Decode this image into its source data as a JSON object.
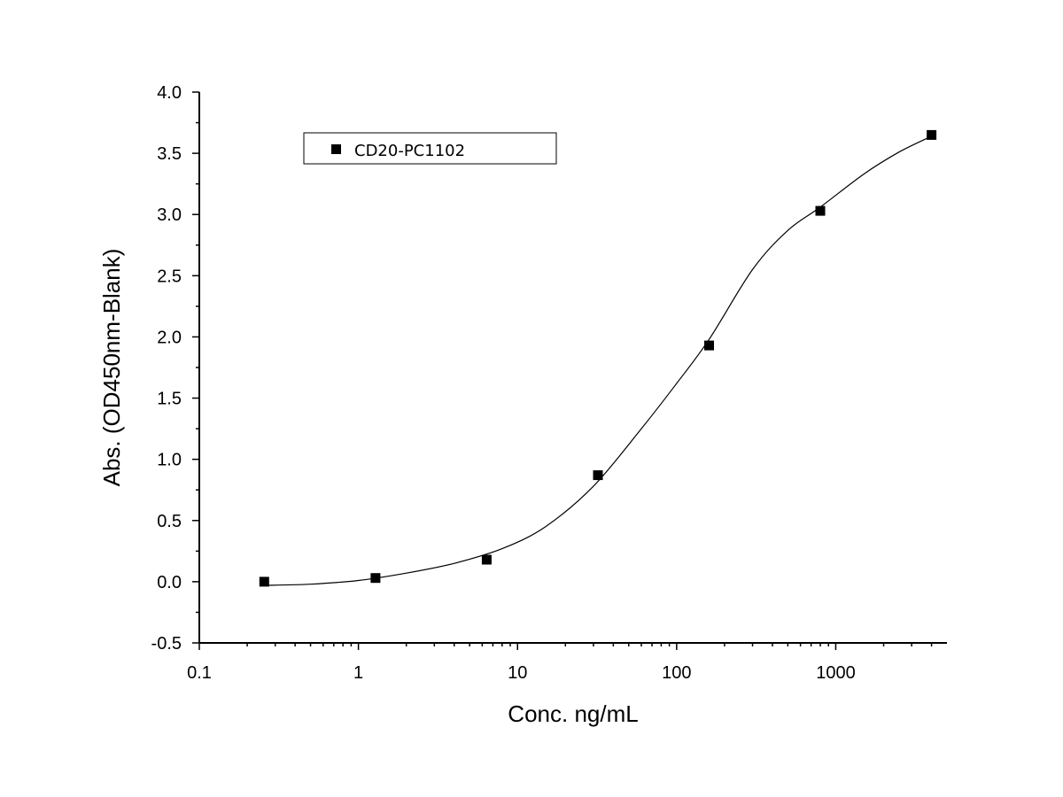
{
  "chart_data": {
    "type": "scatter",
    "title": "",
    "xlabel": "Conc. ng/mL",
    "ylabel": "Abs. (OD450nm-Blank)",
    "x_scale": "log",
    "xlim": [
      0.1,
      5000
    ],
    "ylim": [
      -0.5,
      4.0
    ],
    "x_ticks": [
      0.1,
      1,
      10,
      100,
      1000
    ],
    "x_tick_labels": [
      "0.1",
      "1",
      "10",
      "100",
      "1000"
    ],
    "y_ticks": [
      -0.5,
      0.0,
      0.5,
      1.0,
      1.5,
      2.0,
      2.5,
      3.0,
      3.5,
      4.0
    ],
    "y_tick_labels": [
      "-0.5",
      "0.0",
      "0.5",
      "1.0",
      "1.5",
      "2.0",
      "2.5",
      "3.0",
      "3.5",
      "4.0"
    ],
    "grid": false,
    "legend_position": "top-left",
    "series": [
      {
        "name": "CD20-PC1102",
        "marker": "square",
        "color": "#000000",
        "x": [
          0.256,
          1.28,
          6.4,
          32,
          160,
          800,
          4000
        ],
        "y": [
          0.0,
          0.03,
          0.18,
          0.87,
          1.93,
          3.03,
          3.65
        ]
      }
    ],
    "fit": {
      "type": "four-parameter-logistic",
      "color": "#000000",
      "x": [
        0.256,
        0.5,
        1,
        2,
        4,
        8,
        15,
        30,
        60,
        100,
        160,
        300,
        500,
        800,
        1500,
        2500,
        4000
      ],
      "y": [
        -0.03,
        -0.02,
        0.01,
        0.07,
        0.15,
        0.27,
        0.45,
        0.78,
        1.25,
        1.62,
        1.98,
        2.55,
        2.87,
        3.06,
        3.33,
        3.51,
        3.64
      ]
    }
  }
}
